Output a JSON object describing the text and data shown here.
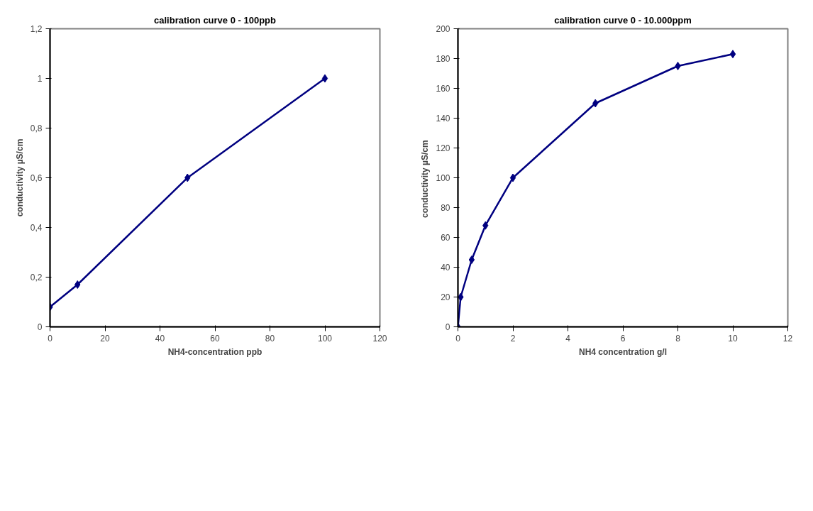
{
  "chart_data": [
    {
      "type": "line",
      "title": "calibration curve 0 - 100ppb",
      "xlabel": "NH4-concentration ppb",
      "ylabel": "conductivity µS/cm",
      "x": [
        0,
        10,
        50,
        100
      ],
      "series": [
        {
          "color": "#000080",
          "values": [
            0.08,
            0.17,
            0.6,
            1.0
          ]
        }
      ],
      "xlim": [
        0,
        120
      ],
      "xticks": [
        0,
        20,
        40,
        60,
        80,
        100,
        120
      ],
      "ylim": [
        0,
        1.2
      ],
      "yticks": [
        0,
        {
          "value": 0.2,
          "label": "0,2"
        },
        {
          "value": 0.4,
          "label": "0,4"
        },
        {
          "value": 0.6,
          "label": "0,6"
        },
        {
          "value": 0.8,
          "label": "0,8"
        },
        1,
        {
          "value": 1.2,
          "label": "1,2"
        }
      ],
      "marker": "diamond"
    },
    {
      "type": "line",
      "title": "calibration curve 0 - 10.000ppm",
      "xlabel": "NH4 concentration g/l",
      "ylabel": "conductivity  µS/cm",
      "x": [
        0,
        0.1,
        0.5,
        1,
        2,
        5,
        8,
        10
      ],
      "series": [
        {
          "color": "#000080",
          "values": [
            0,
            20,
            45,
            68,
            100,
            150,
            175,
            183
          ]
        }
      ],
      "xlim": [
        0,
        12
      ],
      "xticks": [
        0,
        2,
        4,
        6,
        8,
        10,
        12
      ],
      "ylim": [
        0,
        200
      ],
      "yticks": [
        0,
        20,
        40,
        60,
        80,
        100,
        120,
        140,
        160,
        180,
        200
      ],
      "marker": "diamond"
    }
  ]
}
